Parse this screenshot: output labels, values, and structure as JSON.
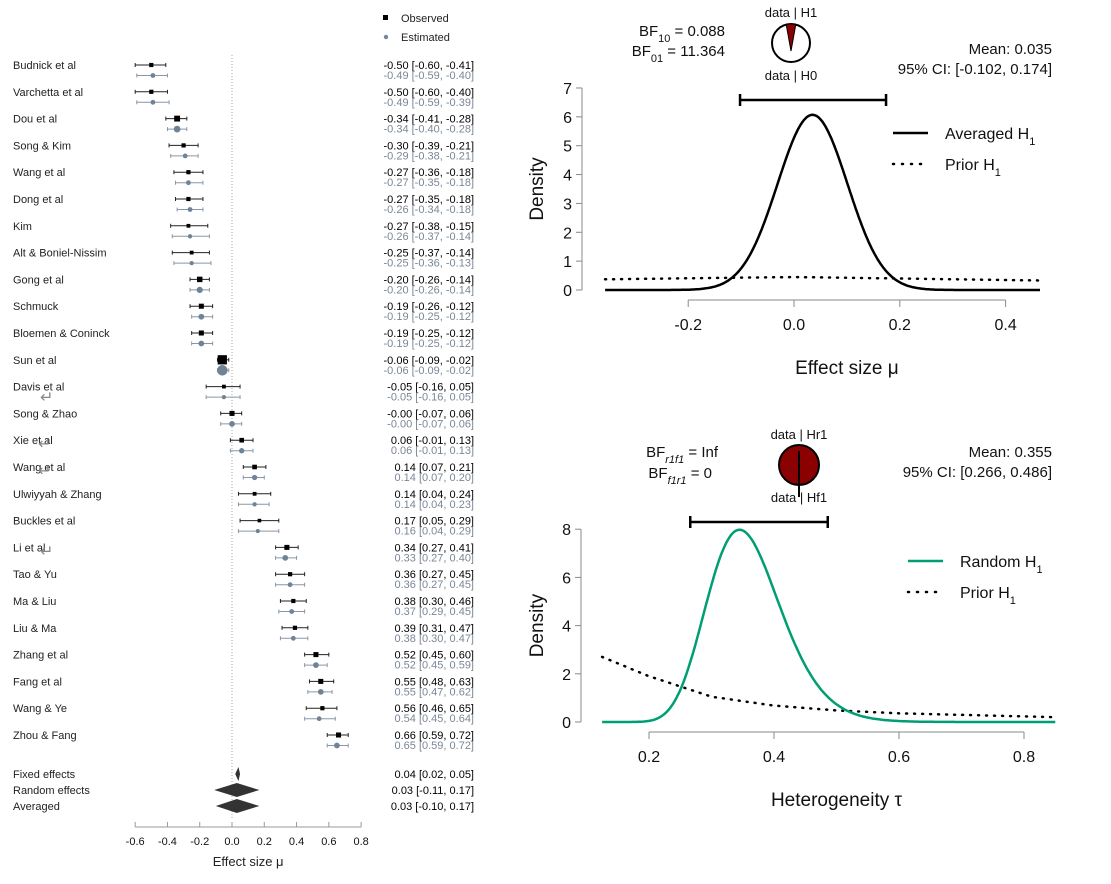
{
  "chart_data": [
    {
      "type": "forest",
      "title": "",
      "xlabel": "Effect size μ",
      "xlim": [
        -0.6,
        0.8
      ],
      "xticks": [
        "-0.6",
        "-0.4",
        "-0.2",
        "0.0",
        "0.2",
        "0.4",
        "0.6",
        "0.8"
      ],
      "xtick_values": [
        -0.6,
        -0.4,
        -0.2,
        0.0,
        0.2,
        0.4,
        0.6,
        0.8
      ],
      "legend": {
        "position": "top-right",
        "observed": "Observed",
        "estimated": "Estimated"
      },
      "colors": {
        "observed": "#000000",
        "estimated": "#74879a",
        "diamond": "#333333"
      },
      "studies": [
        {
          "name": "Budnick et al",
          "obs": [
            -0.5,
            -0.6,
            -0.41
          ],
          "est": [
            -0.49,
            -0.59,
            -0.4
          ],
          "obs_text": "-0.50 [-0.60, -0.41]",
          "est_text": "-0.49 [-0.59, -0.40]",
          "weight": 1
        },
        {
          "name": "Varchetta et al",
          "obs": [
            -0.5,
            -0.6,
            -0.4
          ],
          "est": [
            -0.49,
            -0.59,
            -0.39
          ],
          "obs_text": "-0.50 [-0.60, -0.40]",
          "est_text": "-0.49 [-0.59, -0.39]",
          "weight": 1
        },
        {
          "name": "Dou et al",
          "obs": [
            -0.34,
            -0.41,
            -0.28
          ],
          "est": [
            -0.34,
            -0.4,
            -0.28
          ],
          "obs_text": "-0.34 [-0.41, -0.28]",
          "est_text": "-0.34 [-0.40, -0.28]",
          "weight": 1.4
        },
        {
          "name": "Song & Kim",
          "obs": [
            -0.3,
            -0.39,
            -0.21
          ],
          "est": [
            -0.29,
            -0.38,
            -0.21
          ],
          "obs_text": "-0.30 [-0.39, -0.21]",
          "est_text": "-0.29 [-0.38, -0.21]",
          "weight": 1
        },
        {
          "name": "Wang et al",
          "obs": [
            -0.27,
            -0.36,
            -0.18
          ],
          "est": [
            -0.27,
            -0.35,
            -0.18
          ],
          "obs_text": "-0.27 [-0.36, -0.18]",
          "est_text": "-0.27 [-0.35, -0.18]",
          "weight": 1
        },
        {
          "name": "Dong et al",
          "obs": [
            -0.27,
            -0.35,
            -0.18
          ],
          "est": [
            -0.26,
            -0.34,
            -0.18
          ],
          "obs_text": "-0.27 [-0.35, -0.18]",
          "est_text": "-0.26 [-0.34, -0.18]",
          "weight": 1
        },
        {
          "name": "Kim",
          "obs": [
            -0.27,
            -0.38,
            -0.15
          ],
          "est": [
            -0.26,
            -0.37,
            -0.14
          ],
          "obs_text": "-0.27 [-0.38, -0.15]",
          "est_text": "-0.26 [-0.37, -0.14]",
          "weight": 0.9
        },
        {
          "name": "Alt & Boniel-Nissim",
          "obs": [
            -0.25,
            -0.37,
            -0.14
          ],
          "est": [
            -0.25,
            -0.36,
            -0.13
          ],
          "obs_text": "-0.25 [-0.37, -0.14]",
          "est_text": "-0.25 [-0.36, -0.13]",
          "weight": 0.9
        },
        {
          "name": "Gong et al",
          "obs": [
            -0.2,
            -0.26,
            -0.14
          ],
          "est": [
            -0.2,
            -0.26,
            -0.14
          ],
          "obs_text": "-0.20 [-0.26, -0.14]",
          "est_text": "-0.20 [-0.26, -0.14]",
          "weight": 1.3
        },
        {
          "name": "Schmuck",
          "obs": [
            -0.19,
            -0.26,
            -0.12
          ],
          "est": [
            -0.19,
            -0.25,
            -0.12
          ],
          "obs_text": "-0.19 [-0.26, -0.12]",
          "est_text": "-0.19 [-0.25, -0.12]",
          "weight": 1.2
        },
        {
          "name": "Bloemen & Coninck",
          "obs": [
            -0.19,
            -0.25,
            -0.12
          ],
          "est": [
            -0.19,
            -0.25,
            -0.12
          ],
          "obs_text": "-0.19 [-0.25, -0.12]",
          "est_text": "-0.19 [-0.25, -0.12]",
          "weight": 1.2
        },
        {
          "name": "Sun et al",
          "obs": [
            -0.06,
            -0.09,
            -0.02
          ],
          "est": [
            -0.06,
            -0.09,
            -0.02
          ],
          "obs_text": "-0.06 [-0.09, -0.02]",
          "est_text": "-0.06 [-0.09, -0.02]",
          "weight": 2.2
        },
        {
          "name": "Davis et al",
          "obs": [
            -0.05,
            -0.16,
            0.05
          ],
          "est": [
            -0.05,
            -0.16,
            0.05
          ],
          "obs_text": "-0.05 [-0.16, 0.05]",
          "est_text": "-0.05 [-0.16, 0.05]",
          "weight": 0.9
        },
        {
          "name": "Song & Zhao",
          "obs": [
            -0.0,
            -0.07,
            0.06
          ],
          "est": [
            -0.0,
            -0.07,
            0.06
          ],
          "obs_text": "-0.00 [-0.07, 0.06]",
          "est_text": "-0.00 [-0.07, 0.06]",
          "weight": 1.2
        },
        {
          "name": "Xie et al",
          "obs": [
            0.06,
            -0.01,
            0.13
          ],
          "est": [
            0.06,
            -0.01,
            0.13
          ],
          "obs_text": "0.06 [-0.01, 0.13]",
          "est_text": "0.06 [-0.01, 0.13]",
          "weight": 1.1
        },
        {
          "name": "Wang et al",
          "obs": [
            0.14,
            0.07,
            0.21
          ],
          "est": [
            0.14,
            0.07,
            0.2
          ],
          "obs_text": "0.14 [0.07, 0.21]",
          "est_text": "0.14 [0.07, 0.20]",
          "weight": 1.1
        },
        {
          "name": "Ulwiyyah & Zhang",
          "obs": [
            0.14,
            0.04,
            0.24
          ],
          "est": [
            0.14,
            0.04,
            0.23
          ],
          "obs_text": "0.14 [0.04, 0.24]",
          "est_text": "0.14 [0.04, 0.23]",
          "weight": 0.9
        },
        {
          "name": "Buckles et al",
          "obs": [
            0.17,
            0.05,
            0.29
          ],
          "est": [
            0.16,
            0.04,
            0.29
          ],
          "obs_text": "0.17 [0.05, 0.29]",
          "est_text": "0.16 [0.04, 0.29]",
          "weight": 0.85
        },
        {
          "name": "Li et al",
          "obs": [
            0.34,
            0.27,
            0.41
          ],
          "est": [
            0.33,
            0.27,
            0.4
          ],
          "obs_text": "0.34 [0.27, 0.41]",
          "est_text": "0.33 [0.27, 0.40]",
          "weight": 1.2
        },
        {
          "name": "Tao & Yu",
          "obs": [
            0.36,
            0.27,
            0.45
          ],
          "est": [
            0.36,
            0.27,
            0.45
          ],
          "obs_text": "0.36 [0.27, 0.45]",
          "est_text": "0.36 [0.27, 0.45]",
          "weight": 1
        },
        {
          "name": "Ma & Liu",
          "obs": [
            0.38,
            0.3,
            0.46
          ],
          "est": [
            0.37,
            0.29,
            0.45
          ],
          "obs_text": "0.38 [0.30, 0.46]",
          "est_text": "0.37 [0.29, 0.45]",
          "weight": 1
        },
        {
          "name": "Liu & Ma",
          "obs": [
            0.39,
            0.31,
            0.47
          ],
          "est": [
            0.38,
            0.3,
            0.47
          ],
          "obs_text": "0.39 [0.31, 0.47]",
          "est_text": "0.38 [0.30, 0.47]",
          "weight": 1
        },
        {
          "name": "Zhang et al",
          "obs": [
            0.52,
            0.45,
            0.6
          ],
          "est": [
            0.52,
            0.45,
            0.59
          ],
          "obs_text": "0.52 [0.45, 0.60]",
          "est_text": "0.52 [0.45, 0.59]",
          "weight": 1.2
        },
        {
          "name": "Fang et al",
          "obs": [
            0.55,
            0.48,
            0.63
          ],
          "est": [
            0.55,
            0.47,
            0.62
          ],
          "obs_text": "0.55 [0.48, 0.63]",
          "est_text": "0.55 [0.47, 0.62]",
          "weight": 1.2
        },
        {
          "name": "Wang & Ye",
          "obs": [
            0.56,
            0.46,
            0.65
          ],
          "est": [
            0.54,
            0.45,
            0.64
          ],
          "obs_text": "0.56 [0.46, 0.65]",
          "est_text": "0.54 [0.45, 0.64]",
          "weight": 1
        },
        {
          "name": "Zhou & Fang",
          "obs": [
            0.66,
            0.59,
            0.72
          ],
          "est": [
            0.65,
            0.59,
            0.72
          ],
          "obs_text": "0.66 [0.59, 0.72]",
          "est_text": "0.65 [0.59, 0.72]",
          "weight": 1.2
        }
      ],
      "annotated_rows": [
        12,
        14,
        15,
        18
      ],
      "pooled": [
        {
          "name": "Fixed effects",
          "est": 0.04,
          "lo": 0.02,
          "hi": 0.05,
          "text": "0.04 [0.02, 0.05]"
        },
        {
          "name": "Random effects",
          "est": 0.03,
          "lo": -0.11,
          "hi": 0.17,
          "text": "0.03 [-0.11, 0.17]"
        },
        {
          "name": "Averaged",
          "est": 0.03,
          "lo": -0.1,
          "hi": 0.17,
          "text": "0.03 [-0.10, 0.17]"
        }
      ]
    },
    {
      "type": "line",
      "xlabel": "Effect size μ",
      "ylabel": "Density",
      "xlim": [
        -0.357,
        0.465
      ],
      "ylim": [
        0,
        7
      ],
      "xticks": [
        "-0.2",
        "0.0",
        "0.2",
        "0.4"
      ],
      "xtick_values": [
        -0.2,
        0.0,
        0.2,
        0.4
      ],
      "yticks": [
        "0",
        "1",
        "2",
        "3",
        "4",
        "5",
        "6",
        "7"
      ],
      "ytick_values": [
        0,
        1,
        2,
        3,
        4,
        5,
        6,
        7
      ],
      "bf": {
        "bf10_label": "BF",
        "bf10_sub": "10",
        "bf10_value": " = 0.088",
        "bf01_label": "BF",
        "bf01_sub": "01",
        "bf01_value": " = 11.364",
        "bf10": 0.088
      },
      "pie": {
        "top": "data | H1",
        "bottom": "data | H0",
        "h1_fraction": 0.081
      },
      "summary": {
        "mean": "Mean: 0.035",
        "ci": "95% CI: [-0.102, 0.174]"
      },
      "ci_interval": [
        -0.102,
        0.174
      ],
      "legend": {
        "position": "top-right",
        "entries": [
          {
            "label": "Averaged H",
            "sub": "1",
            "style": "solid",
            "color": "#000000"
          },
          {
            "label": "Prior H",
            "sub": "1",
            "style": "dotted",
            "color": "#000000"
          }
        ]
      },
      "series": [
        {
          "name": "Averaged H1",
          "style": "solid",
          "distribution": "normal",
          "mean": 0.035,
          "peak": 6.07
        },
        {
          "name": "Prior H1",
          "style": "dotted",
          "values_at": {
            "x": [
              -0.357,
              0.0,
              0.465
            ],
            "y": [
              0.37,
              0.45,
              0.33
            ]
          }
        }
      ]
    },
    {
      "type": "line",
      "xlabel": "Heterogeneity τ",
      "ylabel": "Density",
      "xlim": [
        0.125,
        0.85
      ],
      "ylim": [
        0,
        8
      ],
      "xticks": [
        "0.2",
        "0.4",
        "0.6",
        "0.8"
      ],
      "xtick_values": [
        0.2,
        0.4,
        0.6,
        0.8
      ],
      "yticks": [
        "0",
        "2",
        "4",
        "6",
        "8"
      ],
      "ytick_values": [
        0,
        2,
        4,
        6,
        8
      ],
      "bf": {
        "r1f1_label": "BF",
        "r1f1_sub": "r1f1",
        "r1f1_value": " = Inf",
        "f1r1_label": "BF",
        "f1r1_sub": "f1r1",
        "f1r1_value": " = 0",
        "hr1_fraction": 1.0
      },
      "pie": {
        "top": "data | Hr1",
        "bottom": "data | Hf1",
        "hr1_fraction": 1.0
      },
      "summary": {
        "mean": "Mean: 0.355",
        "ci": "95% CI: [0.266, 0.486]"
      },
      "ci_interval": [
        0.266,
        0.486
      ],
      "legend": {
        "position": "top-right",
        "entries": [
          {
            "label": "Random H",
            "sub": "1",
            "style": "solid",
            "color": "#009e73"
          },
          {
            "label": "Prior H",
            "sub": "1",
            "style": "dotted",
            "color": "#000000"
          }
        ]
      },
      "series": [
        {
          "name": "Random H1",
          "style": "solid",
          "distribution": "lognormal-like",
          "mode": 0.34,
          "peak": 7.85
        },
        {
          "name": "Prior H1",
          "style": "dotted",
          "values_at": {
            "x": [
              0.125,
              0.2,
              0.3,
              0.4,
              0.5,
              0.6,
              0.85
            ],
            "y": [
              2.7,
              1.9,
              1.05,
              0.68,
              0.48,
              0.36,
              0.2
            ]
          }
        }
      ]
    }
  ],
  "colors": {
    "pie_red": "#8b0000",
    "random_green": "#009e73",
    "axis_gray": "#888888",
    "estimated_text": "#7a8797"
  }
}
